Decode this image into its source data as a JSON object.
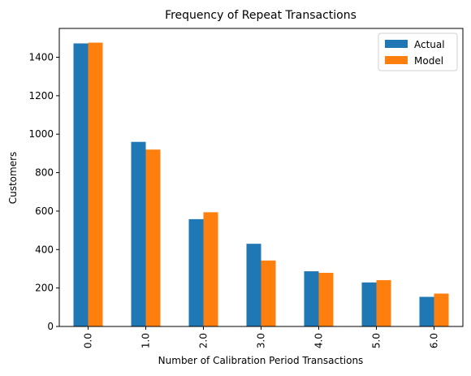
{
  "chart_data": {
    "type": "bar",
    "title": "Frequency of Repeat Transactions",
    "xlabel": "Number of Calibration Period Transactions",
    "ylabel": "Customers",
    "categories": [
      "0.0",
      "1.0",
      "2.0",
      "3.0",
      "4.0",
      "5.0",
      "6.0"
    ],
    "series": [
      {
        "name": "Actual",
        "color": "#1f77b4",
        "values": [
          1472,
          960,
          558,
          430,
          287,
          229,
          154
        ]
      },
      {
        "name": "Model",
        "color": "#ff7f0e",
        "values": [
          1476,
          920,
          594,
          343,
          279,
          241,
          171
        ]
      }
    ],
    "ylim": [
      0,
      1550
    ],
    "yticks": [
      0,
      200,
      400,
      600,
      800,
      1000,
      1200,
      1400
    ],
    "grid": false,
    "legend_position": "top-right"
  }
}
